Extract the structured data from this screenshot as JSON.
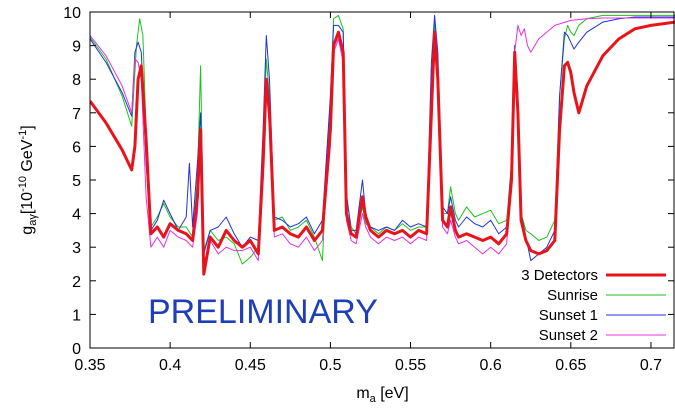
{
  "chart_data": {
    "type": "line",
    "title": "",
    "xlabel": {
      "main": "m",
      "sub": "a",
      "unit": " [eV]"
    },
    "ylabel": {
      "main": "g",
      "sub": "aγ",
      "unit_prefix": "[10",
      "exp1": "-10",
      "mid": " GeV",
      "exp2": "-1",
      "close": "]"
    },
    "xlim": [
      0.35,
      0.715
    ],
    "ylim": [
      0,
      10
    ],
    "xticks": [
      "0.35",
      "0.4",
      "0.45",
      "0.5",
      "0.55",
      "0.6",
      "0.65",
      "0.7"
    ],
    "yticks": [
      "0",
      "1",
      "2",
      "3",
      "4",
      "5",
      "6",
      "7",
      "8",
      "9",
      "10"
    ],
    "grid": false,
    "legend_position": "bottom-right",
    "annotation": {
      "text": "PRELIMINARY",
      "color": "#1f3fb8"
    },
    "series": [
      {
        "name": "3 Detectors",
        "color": "#e8141c",
        "width": 3,
        "x": [
          0.35,
          0.36,
          0.37,
          0.376,
          0.378,
          0.38,
          0.382,
          0.385,
          0.388,
          0.392,
          0.396,
          0.4,
          0.405,
          0.41,
          0.414,
          0.417,
          0.419,
          0.421,
          0.425,
          0.43,
          0.435,
          0.44,
          0.445,
          0.45,
          0.455,
          0.458,
          0.46,
          0.462,
          0.465,
          0.47,
          0.475,
          0.48,
          0.485,
          0.49,
          0.495,
          0.5,
          0.502,
          0.505,
          0.508,
          0.51,
          0.513,
          0.516,
          0.52,
          0.522,
          0.525,
          0.53,
          0.535,
          0.54,
          0.545,
          0.55,
          0.555,
          0.56,
          0.563,
          0.565,
          0.567,
          0.57,
          0.573,
          0.575,
          0.578,
          0.58,
          0.585,
          0.59,
          0.595,
          0.6,
          0.605,
          0.61,
          0.613,
          0.615,
          0.617,
          0.619,
          0.622,
          0.625,
          0.63,
          0.635,
          0.64,
          0.643,
          0.646,
          0.648,
          0.65,
          0.652,
          0.655,
          0.66,
          0.67,
          0.68,
          0.69,
          0.7,
          0.715
        ],
        "y": [
          7.35,
          6.7,
          5.9,
          5.3,
          6.0,
          8.0,
          8.4,
          6.2,
          3.4,
          3.6,
          3.3,
          3.7,
          3.5,
          3.4,
          3.2,
          4.5,
          6.5,
          2.2,
          3.3,
          3.0,
          3.5,
          3.2,
          3.0,
          3.2,
          2.8,
          5.5,
          8.0,
          7.0,
          3.5,
          3.6,
          3.4,
          3.3,
          3.6,
          3.2,
          3.5,
          6.5,
          9.0,
          9.4,
          8.8,
          4.0,
          3.4,
          3.3,
          4.5,
          3.9,
          3.5,
          3.3,
          3.5,
          3.4,
          3.5,
          3.3,
          3.5,
          3.4,
          7.0,
          9.4,
          8.0,
          3.8,
          3.6,
          4.2,
          3.5,
          3.3,
          3.4,
          3.3,
          3.2,
          3.3,
          3.1,
          3.4,
          5.0,
          8.8,
          7.0,
          3.8,
          3.2,
          2.9,
          2.8,
          2.9,
          3.2,
          6.5,
          8.4,
          8.5,
          8.2,
          7.6,
          7.0,
          7.8,
          8.7,
          9.2,
          9.5,
          9.6,
          9.7
        ]
      },
      {
        "name": "Sunrise",
        "color": "#1dc21d",
        "width": 1,
        "x": [
          0.35,
          0.36,
          0.37,
          0.376,
          0.379,
          0.381,
          0.383,
          0.386,
          0.388,
          0.392,
          0.396,
          0.4,
          0.405,
          0.41,
          0.414,
          0.417,
          0.419,
          0.421,
          0.425,
          0.43,
          0.435,
          0.44,
          0.445,
          0.45,
          0.455,
          0.458,
          0.46,
          0.462,
          0.465,
          0.47,
          0.475,
          0.48,
          0.485,
          0.49,
          0.495,
          0.5,
          0.502,
          0.505,
          0.508,
          0.51,
          0.513,
          0.516,
          0.52,
          0.522,
          0.525,
          0.53,
          0.535,
          0.54,
          0.545,
          0.55,
          0.555,
          0.56,
          0.563,
          0.565,
          0.567,
          0.57,
          0.573,
          0.575,
          0.578,
          0.58,
          0.585,
          0.59,
          0.595,
          0.6,
          0.605,
          0.61,
          0.613,
          0.615,
          0.617,
          0.619,
          0.622,
          0.625,
          0.63,
          0.635,
          0.64,
          0.643,
          0.646,
          0.648,
          0.65,
          0.652,
          0.655,
          0.66,
          0.67,
          0.68,
          0.69,
          0.7,
          0.715
        ],
        "y": [
          9.25,
          8.6,
          7.5,
          6.6,
          9.0,
          9.8,
          9.3,
          5.0,
          3.6,
          3.9,
          4.3,
          3.9,
          3.6,
          3.6,
          3.3,
          5.0,
          8.4,
          2.9,
          3.5,
          3.2,
          3.3,
          3.1,
          2.5,
          2.7,
          3.0,
          6.0,
          8.6,
          7.5,
          3.8,
          3.9,
          3.5,
          3.6,
          3.8,
          3.3,
          2.6,
          7.5,
          9.8,
          9.9,
          9.5,
          4.5,
          3.6,
          3.4,
          4.2,
          3.7,
          3.6,
          3.4,
          3.6,
          3.5,
          3.7,
          3.5,
          3.6,
          3.6,
          8.0,
          9.7,
          8.5,
          4.0,
          4.0,
          4.8,
          4.0,
          3.8,
          4.2,
          3.9,
          4.0,
          4.1,
          3.7,
          3.8,
          5.5,
          9.0,
          7.5,
          4.0,
          3.5,
          3.4,
          3.2,
          3.3,
          3.8,
          7.5,
          9.2,
          9.6,
          9.4,
          9.3,
          9.6,
          9.8,
          9.9,
          9.9,
          9.9,
          9.9,
          9.9
        ]
      },
      {
        "name": "Sunset 1",
        "color": "#2032e0",
        "width": 1,
        "x": [
          0.35,
          0.36,
          0.37,
          0.376,
          0.378,
          0.38,
          0.382,
          0.385,
          0.388,
          0.392,
          0.396,
          0.4,
          0.405,
          0.41,
          0.412,
          0.414,
          0.417,
          0.419,
          0.421,
          0.425,
          0.43,
          0.435,
          0.44,
          0.445,
          0.45,
          0.455,
          0.458,
          0.46,
          0.462,
          0.465,
          0.47,
          0.475,
          0.48,
          0.485,
          0.49,
          0.495,
          0.5,
          0.502,
          0.505,
          0.508,
          0.51,
          0.513,
          0.516,
          0.52,
          0.522,
          0.525,
          0.53,
          0.535,
          0.54,
          0.545,
          0.55,
          0.555,
          0.56,
          0.563,
          0.565,
          0.567,
          0.57,
          0.573,
          0.575,
          0.578,
          0.58,
          0.585,
          0.59,
          0.595,
          0.6,
          0.605,
          0.61,
          0.613,
          0.615,
          0.617,
          0.619,
          0.622,
          0.625,
          0.63,
          0.635,
          0.64,
          0.643,
          0.646,
          0.648,
          0.65,
          0.652,
          0.655,
          0.66,
          0.67,
          0.68,
          0.69,
          0.7,
          0.715
        ],
        "y": [
          9.2,
          8.5,
          7.6,
          6.9,
          8.8,
          9.1,
          8.8,
          5.5,
          3.5,
          3.8,
          4.4,
          4.0,
          3.5,
          3.9,
          5.5,
          3.6,
          5.5,
          7.0,
          2.8,
          3.5,
          3.6,
          3.9,
          3.4,
          3.0,
          3.3,
          3.2,
          6.5,
          9.3,
          8.0,
          3.9,
          3.8,
          3.6,
          3.7,
          3.9,
          3.4,
          3.8,
          7.5,
          9.6,
          9.6,
          9.4,
          4.6,
          3.5,
          3.5,
          5.0,
          4.0,
          3.6,
          3.5,
          3.6,
          3.5,
          3.8,
          3.6,
          3.7,
          3.6,
          8.5,
          9.9,
          8.8,
          4.2,
          4.0,
          4.5,
          3.8,
          3.6,
          3.9,
          3.7,
          3.6,
          3.8,
          3.4,
          3.6,
          5.5,
          9.0,
          7.5,
          4.0,
          3.3,
          2.6,
          2.8,
          3.0,
          3.5,
          7.5,
          9.4,
          9.3,
          9.1,
          8.9,
          9.1,
          9.4,
          9.7,
          9.8,
          9.85,
          9.85,
          9.85
        ]
      },
      {
        "name": "Sunset 2",
        "color": "#e830e0",
        "width": 1,
        "x": [
          0.35,
          0.36,
          0.37,
          0.376,
          0.378,
          0.38,
          0.382,
          0.385,
          0.388,
          0.392,
          0.396,
          0.4,
          0.405,
          0.41,
          0.414,
          0.417,
          0.419,
          0.421,
          0.425,
          0.43,
          0.435,
          0.44,
          0.445,
          0.45,
          0.455,
          0.458,
          0.46,
          0.462,
          0.465,
          0.47,
          0.475,
          0.48,
          0.485,
          0.49,
          0.495,
          0.5,
          0.502,
          0.505,
          0.508,
          0.51,
          0.513,
          0.516,
          0.52,
          0.522,
          0.525,
          0.53,
          0.535,
          0.54,
          0.545,
          0.55,
          0.555,
          0.56,
          0.563,
          0.565,
          0.567,
          0.57,
          0.573,
          0.575,
          0.578,
          0.58,
          0.585,
          0.59,
          0.595,
          0.6,
          0.605,
          0.61,
          0.613,
          0.615,
          0.617,
          0.619,
          0.621,
          0.623,
          0.625,
          0.63,
          0.64,
          0.65,
          0.66,
          0.67,
          0.68,
          0.69,
          0.7,
          0.715
        ],
        "y": [
          9.3,
          8.7,
          7.8,
          7.0,
          8.6,
          8.5,
          8.0,
          4.5,
          3.0,
          3.3,
          3.0,
          3.5,
          3.3,
          3.2,
          3.0,
          4.0,
          5.8,
          2.5,
          3.2,
          2.8,
          3.0,
          2.9,
          2.9,
          3.0,
          2.6,
          5.0,
          7.8,
          6.5,
          3.3,
          3.4,
          3.1,
          3.0,
          3.3,
          2.9,
          3.2,
          6.0,
          8.8,
          9.2,
          8.5,
          3.8,
          3.2,
          3.1,
          4.0,
          3.6,
          3.3,
          3.1,
          3.3,
          3.2,
          3.3,
          3.1,
          3.3,
          3.2,
          6.8,
          9.2,
          7.8,
          3.6,
          3.4,
          3.8,
          3.3,
          3.1,
          3.2,
          3.0,
          2.8,
          3.0,
          2.8,
          3.1,
          5.0,
          8.8,
          9.6,
          9.3,
          9.5,
          9.0,
          8.8,
          9.2,
          9.6,
          9.75,
          9.8,
          9.82,
          9.82,
          9.82,
          9.82,
          9.82
        ]
      }
    ]
  }
}
